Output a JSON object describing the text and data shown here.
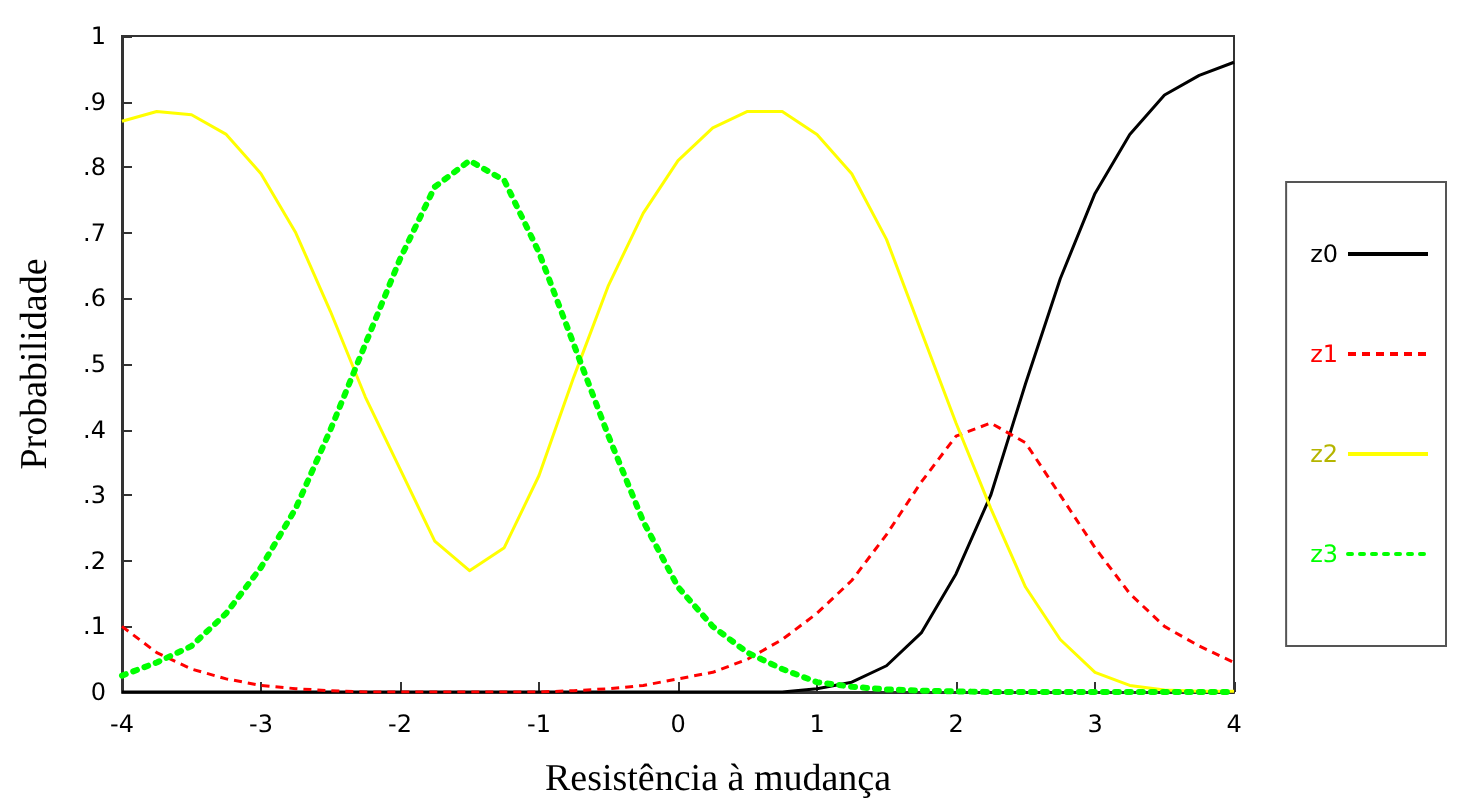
{
  "chart_data": {
    "type": "line",
    "xlabel": "Resistência à mudança",
    "ylabel": "Probabilidade",
    "x": [
      -4,
      -3.75,
      -3.5,
      -3.25,
      -3,
      -2.75,
      -2.5,
      -2.25,
      -2,
      -1.75,
      -1.5,
      -1.25,
      -1,
      -0.75,
      -0.5,
      -0.25,
      0,
      0.25,
      0.5,
      0.75,
      1,
      1.25,
      1.5,
      1.75,
      2,
      2.25,
      2.5,
      2.75,
      3,
      3.25,
      3.5,
      3.75,
      4
    ],
    "series": [
      {
        "name": "z0",
        "color": "#000000",
        "line_style": "solid",
        "values": [
          0,
          0,
          0,
          0,
          0,
          0,
          0,
          0,
          0,
          0,
          0,
          0,
          0,
          0,
          0,
          0,
          0,
          0,
          0,
          0,
          0.005,
          0.015,
          0.04,
          0.09,
          0.18,
          0.3,
          0.47,
          0.63,
          0.76,
          0.85,
          0.91,
          0.94,
          0.96
        ]
      },
      {
        "name": "z1",
        "color": "#ff0000",
        "line_style": "dashed",
        "values": [
          0.1,
          0.06,
          0.035,
          0.02,
          0.01,
          0.005,
          0.002,
          0,
          0,
          0,
          0,
          0,
          0,
          0.002,
          0.005,
          0.01,
          0.02,
          0.03,
          0.05,
          0.08,
          0.12,
          0.17,
          0.24,
          0.32,
          0.39,
          0.41,
          0.38,
          0.3,
          0.22,
          0.15,
          0.1,
          0.07,
          0.045
        ]
      },
      {
        "name": "z2",
        "color": "#ffff00",
        "line_style": "solid",
        "values": [
          0.87,
          0.885,
          0.88,
          0.85,
          0.79,
          0.7,
          0.58,
          0.45,
          0.34,
          0.23,
          0.185,
          0.22,
          0.33,
          0.48,
          0.62,
          0.73,
          0.81,
          0.86,
          0.885,
          0.885,
          0.85,
          0.79,
          0.69,
          0.55,
          0.41,
          0.28,
          0.16,
          0.08,
          0.03,
          0.01,
          0.003,
          0.001,
          0.001
        ]
      },
      {
        "name": "z3",
        "color": "#00ff00",
        "line_style": "dotted",
        "values": [
          0.025,
          0.045,
          0.07,
          0.12,
          0.19,
          0.28,
          0.4,
          0.53,
          0.66,
          0.77,
          0.81,
          0.78,
          0.67,
          0.53,
          0.39,
          0.26,
          0.16,
          0.1,
          0.06,
          0.035,
          0.015,
          0.008,
          0.004,
          0.002,
          0.001,
          0,
          0,
          0,
          0,
          0,
          0,
          0,
          0
        ]
      }
    ],
    "xlim": [
      -4,
      4
    ],
    "xticks": [
      -4,
      -3,
      -2,
      -1,
      0,
      1,
      2,
      3,
      4
    ],
    "ylim": [
      0,
      1
    ],
    "yticks": [
      0,
      {
        "value": 0.1,
        "label": ".1"
      },
      {
        "value": 0.2,
        "label": ".2"
      },
      {
        "value": 0.3,
        "label": ".3"
      },
      {
        "value": 0.4,
        "label": ".4"
      },
      {
        "value": 0.5,
        "label": ".5"
      },
      {
        "value": 0.6,
        "label": ".6"
      },
      {
        "value": 0.7,
        "label": ".7"
      },
      {
        "value": 0.8,
        "label": ".8"
      },
      {
        "value": 0.9,
        "label": ".9"
      },
      1
    ],
    "grid": false,
    "legend": "right",
    "marker": "none"
  }
}
